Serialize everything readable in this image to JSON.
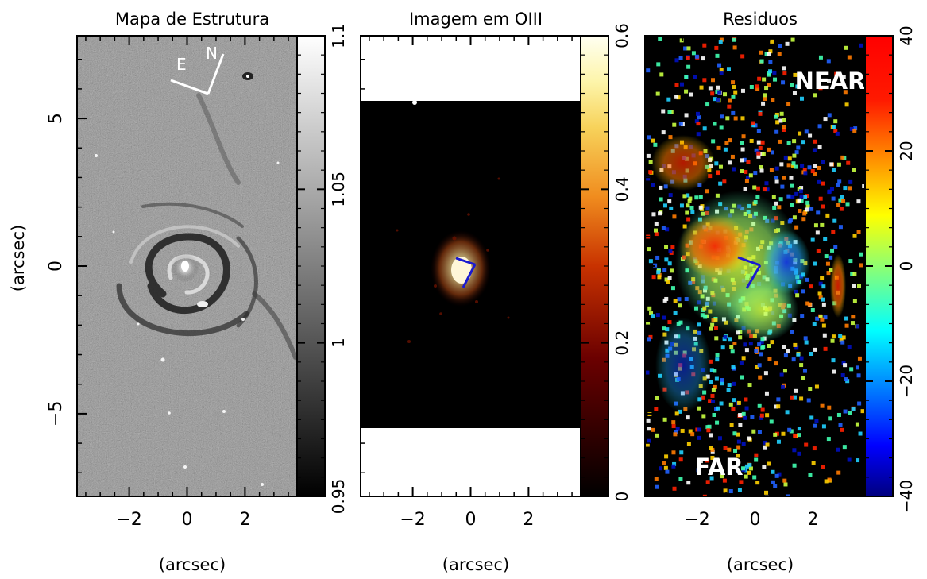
{
  "chart_data": [
    {
      "type": "heatmap",
      "title": "Mapa de Estrutura",
      "xlabel": "(arcsec)",
      "ylabel": "(arcsec)",
      "xlim": [
        -3.8,
        3.8
      ],
      "ylim": [
        -7.8,
        7.8
      ],
      "x_ticks": [
        -2,
        0,
        2
      ],
      "x_tick_labels": [
        "−2",
        "0",
        "2"
      ],
      "y_ticks": [
        5,
        0,
        -5
      ],
      "y_tick_labels": [
        "5",
        "0",
        "−5"
      ],
      "colormap": "grayscale",
      "colorbar": {
        "range": [
          0.95,
          1.1
        ],
        "ticks": [
          1.1,
          1.05,
          1,
          0.95
        ],
        "tick_labels": [
          "1.1",
          "1.05",
          "1",
          "0.95"
        ]
      },
      "compass": {
        "east_label": "E",
        "north_label": "N"
      }
    },
    {
      "type": "heatmap",
      "title": "Imagem em OIII",
      "xlabel": "(arcsec)",
      "xlim": [
        -3.8,
        3.8
      ],
      "ylim": [
        -7.8,
        7.8
      ],
      "x_ticks": [
        -2,
        0,
        2
      ],
      "x_tick_labels": [
        "−2",
        "0",
        "2"
      ],
      "colormap": "heat",
      "colorbar": {
        "range": [
          0,
          0.6
        ],
        "ticks": [
          0.6,
          0.4,
          0.2,
          0
        ],
        "tick_labels": [
          "0.6",
          "0.4",
          "0.2",
          "0"
        ]
      }
    },
    {
      "type": "heatmap",
      "title": "Residuos",
      "xlabel": "(arcsec)",
      "xlim": [
        -3.8,
        3.8
      ],
      "ylim": [
        -7.8,
        7.8
      ],
      "x_ticks": [
        -2,
        0,
        2
      ],
      "x_tick_labels": [
        "−2",
        "0",
        "2"
      ],
      "colormap": "jet",
      "colorbar": {
        "range": [
          -40,
          40
        ],
        "ticks": [
          40,
          20,
          0,
          -20,
          -40
        ],
        "tick_labels": [
          "40",
          "20",
          "0",
          "−20",
          "−40"
        ]
      },
      "annotations": [
        "NEAR",
        "FAR"
      ]
    }
  ],
  "colors": {
    "axis": "#000000",
    "compass_left": "#ffffff",
    "compass_other": "#1a1ad0",
    "annotation_text": "#ffffff"
  }
}
